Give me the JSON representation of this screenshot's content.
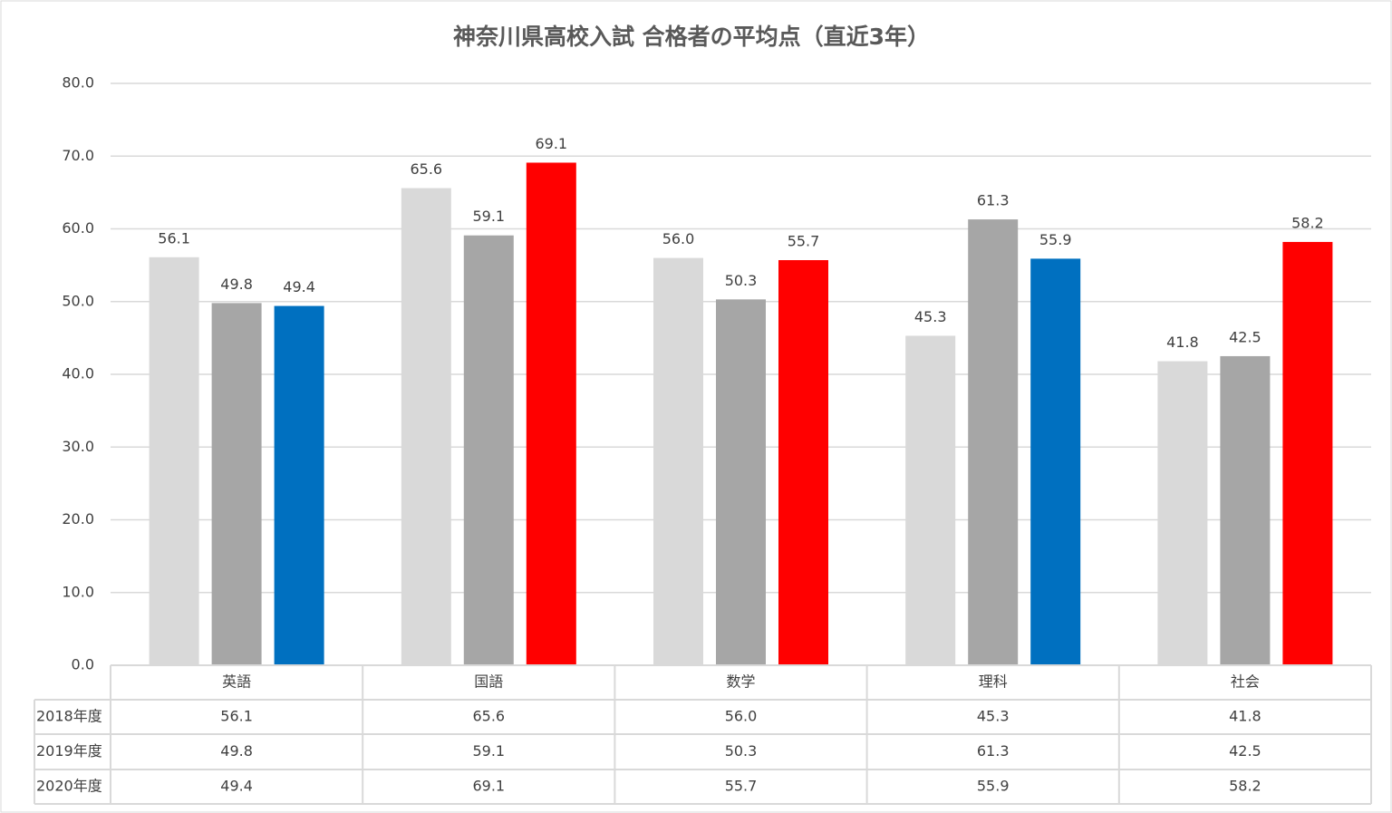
{
  "chart_data": {
    "type": "bar",
    "title": "神奈川県高校入試 合格者の平均点（直近3年）",
    "categories": [
      "英語",
      "国語",
      "数学",
      "理科",
      "社会"
    ],
    "series": [
      {
        "name": "2018年度",
        "color": "#d9d9d9",
        "values": [
          56.1,
          65.6,
          56.0,
          45.3,
          41.8
        ],
        "value_labels": [
          "56.1",
          "65.6",
          "56.0",
          "45.3",
          "41.8"
        ]
      },
      {
        "name": "2019年度",
        "color": "#a6a6a6",
        "values": [
          49.8,
          59.1,
          50.3,
          61.3,
          42.5
        ],
        "value_labels": [
          "49.8",
          "59.1",
          "50.3",
          "61.3",
          "42.5"
        ]
      },
      {
        "name": "2020年度",
        "colors": [
          "#0070c0",
          "#ff0000",
          "#ff0000",
          "#0070c0",
          "#ff0000"
        ],
        "values": [
          49.4,
          69.1,
          55.7,
          55.9,
          58.2
        ],
        "value_labels": [
          "49.4",
          "69.1",
          "55.7",
          "55.9",
          "58.2"
        ]
      }
    ],
    "ylim": [
      0,
      80
    ],
    "yticks": [
      {
        "value": 0,
        "label": "0.0"
      },
      {
        "value": 10,
        "label": "10.0"
      },
      {
        "value": 20,
        "label": "20.0"
      },
      {
        "value": 30,
        "label": "30.0"
      },
      {
        "value": 40,
        "label": "40.0"
      },
      {
        "value": 50,
        "label": "50.0"
      },
      {
        "value": 60,
        "label": "60.0"
      },
      {
        "value": 70,
        "label": "70.0"
      },
      {
        "value": 80,
        "label": "80.0"
      }
    ],
    "grid": true,
    "data_table": true
  }
}
